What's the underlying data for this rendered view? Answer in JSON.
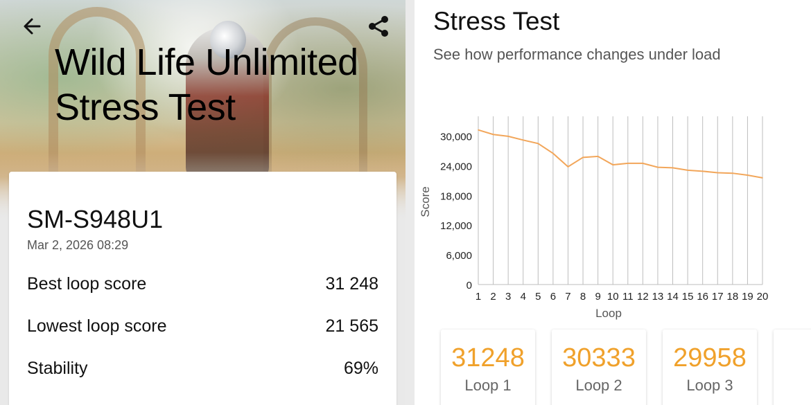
{
  "header": {
    "title": "Wild Life Unlimited Stress Test",
    "back_icon": "arrow-left-icon",
    "share_icon": "share-icon"
  },
  "result": {
    "device": "SM-S948U1",
    "date": "Mar 2, 2026 08:29",
    "best_label": "Best loop score",
    "best_value": "31 248",
    "lowest_label": "Lowest loop score",
    "lowest_value": "21 565",
    "stability_label": "Stability",
    "stability_value": "69%"
  },
  "stress": {
    "title": "Stress Test",
    "subtitle": "See how performance changes under load"
  },
  "chart_data": {
    "type": "line",
    "x": [
      1,
      2,
      3,
      4,
      5,
      6,
      7,
      8,
      9,
      10,
      11,
      12,
      13,
      14,
      15,
      16,
      17,
      18,
      19,
      20
    ],
    "series": [
      {
        "values": [
          31248,
          30333,
          29958,
          29200,
          28500,
          26500,
          23800,
          25700,
          25900,
          24200,
          24500,
          24500,
          23700,
          23600,
          23100,
          22900,
          22600,
          22500,
          22100,
          21565
        ]
      }
    ],
    "xlabel": "Loop",
    "ylabel": "Score",
    "ylim": [
      0,
      30000
    ],
    "yticks": [
      "0",
      "6,000",
      "12,000",
      "18,000",
      "24,000",
      "30,000"
    ],
    "ytick_values": [
      0,
      6000,
      12000,
      18000,
      24000,
      30000
    ],
    "grid": "vertical",
    "line_color": "#f2a65a"
  },
  "loops": [
    {
      "score": "31248",
      "label": "Loop 1"
    },
    {
      "score": "30333",
      "label": "Loop 2"
    },
    {
      "score": "29958",
      "label": "Loop 3"
    }
  ],
  "colors": {
    "accent": "#f0a12b"
  }
}
